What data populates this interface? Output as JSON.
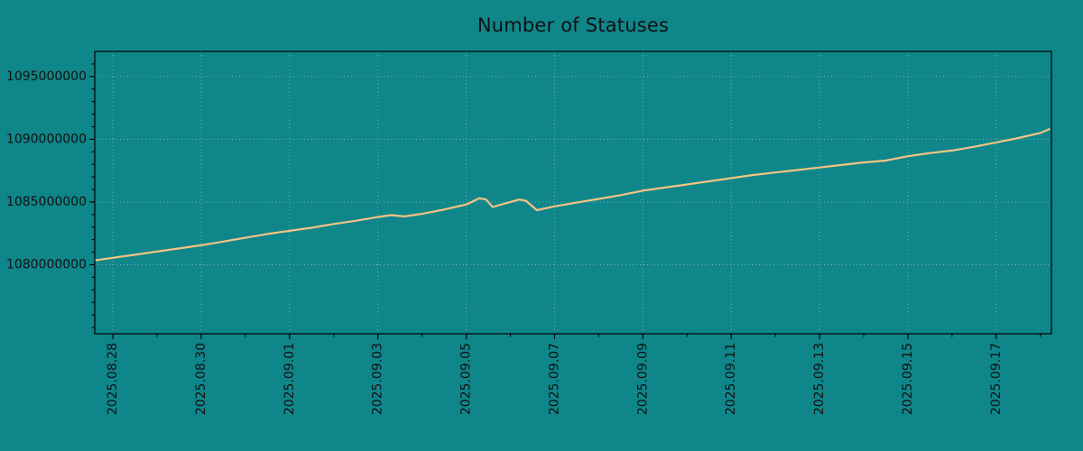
{
  "figure": {
    "background_color": "#0f868a",
    "text_color": "#111111"
  },
  "chart_data": {
    "type": "line",
    "title": "Number of Statuses",
    "grid": true,
    "legend": "none",
    "line_color": "#f3c383",
    "grid_color": "#c2cecb",
    "axis_color": "#000000",
    "xlim_days": [
      -0.41,
      21.25
    ],
    "ylim": [
      1074500000,
      1097000000
    ],
    "y_ticks": [
      1080000000,
      1085000000,
      1090000000,
      1095000000
    ],
    "y_minor_step": 1000000,
    "x_ticks": [
      {
        "day": 0,
        "label": "2025.08.28"
      },
      {
        "day": 2,
        "label": "2025.08.30"
      },
      {
        "day": 4,
        "label": "2025.09.01"
      },
      {
        "day": 6,
        "label": "2025.09.03"
      },
      {
        "day": 8,
        "label": "2025.09.05"
      },
      {
        "day": 10,
        "label": "2025.09.07"
      },
      {
        "day": 12,
        "label": "2025.09.09"
      },
      {
        "day": 14,
        "label": "2025.09.11"
      },
      {
        "day": 16,
        "label": "2025.09.13"
      },
      {
        "day": 18,
        "label": "2025.09.15"
      },
      {
        "day": 20,
        "label": "2025.09.17"
      }
    ],
    "x_minor_tick_days": [
      0,
      1,
      2,
      3,
      4,
      5,
      6,
      7,
      8,
      9,
      10,
      11,
      12,
      13,
      14,
      15,
      16,
      17,
      18,
      19,
      20,
      21
    ],
    "series": [
      {
        "name": "statuses",
        "x_days": [
          -0.4,
          0,
          0.5,
          1,
          1.5,
          2,
          2.5,
          3,
          3.5,
          4,
          4.5,
          5,
          5.5,
          6,
          6.3,
          6.6,
          7,
          7.5,
          8,
          8.3,
          8.45,
          8.6,
          9,
          9.2,
          9.35,
          9.6,
          10,
          10.5,
          11,
          11.5,
          12,
          12.5,
          13,
          13.5,
          14,
          14.5,
          15,
          15.5,
          16,
          16.5,
          17,
          17.5,
          18,
          18.5,
          19,
          19.5,
          20,
          20.5,
          21,
          21.2
        ],
        "values": [
          1080350000,
          1080550000,
          1080800000,
          1081050000,
          1081300000,
          1081550000,
          1081850000,
          1082150000,
          1082450000,
          1082700000,
          1082950000,
          1083250000,
          1083500000,
          1083800000,
          1083950000,
          1083850000,
          1084050000,
          1084400000,
          1084800000,
          1085300000,
          1085200000,
          1084600000,
          1085000000,
          1085200000,
          1085100000,
          1084350000,
          1084650000,
          1084950000,
          1085250000,
          1085550000,
          1085900000,
          1086150000,
          1086400000,
          1086650000,
          1086900000,
          1087150000,
          1087350000,
          1087550000,
          1087750000,
          1087950000,
          1088150000,
          1088300000,
          1088650000,
          1088900000,
          1089100000,
          1089400000,
          1089750000,
          1090100000,
          1090500000,
          1090800000
        ]
      }
    ]
  }
}
